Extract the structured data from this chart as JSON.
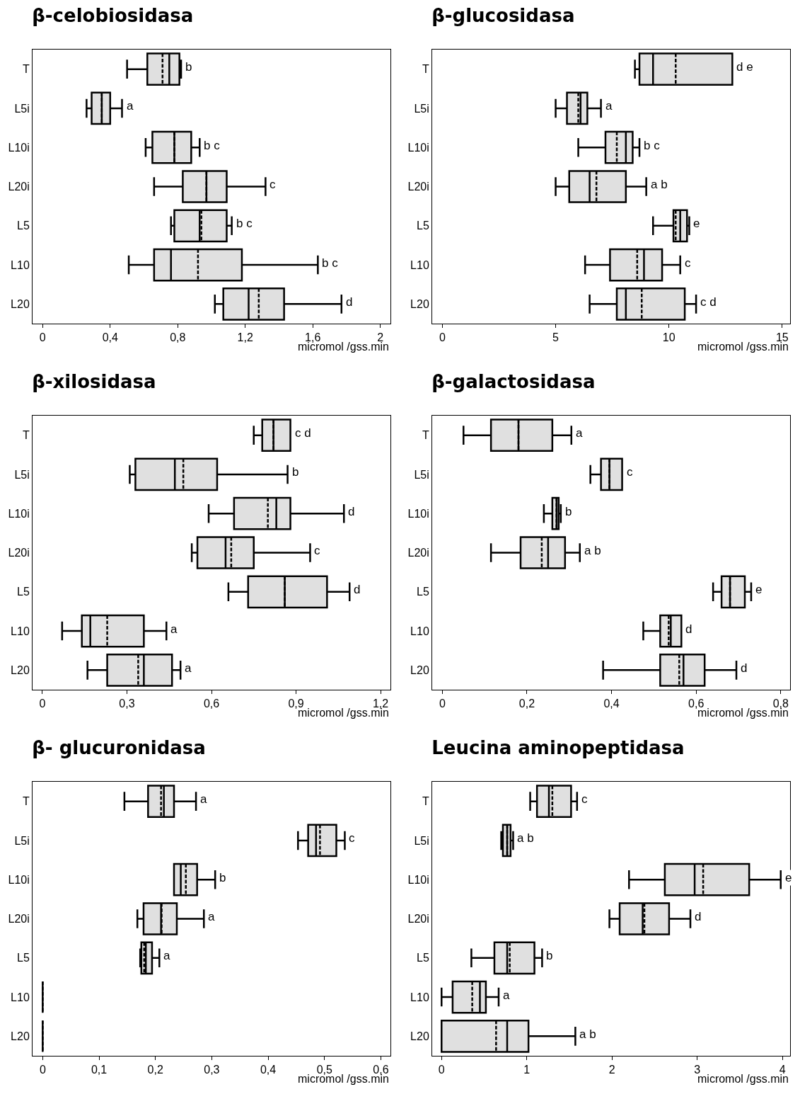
{
  "chart_data": [
    {
      "type": "box",
      "orientation": "horizontal",
      "title": "β-celobiosidasa",
      "xlabel": "micromol /gss.min",
      "categories": [
        "T",
        "L5i",
        "L10i",
        "L20i",
        "L5",
        "L10",
        "L20"
      ],
      "boxes": [
        {
          "low": 0.5,
          "q1": 0.62,
          "median": 0.75,
          "q3": 0.81,
          "high": 0.82,
          "mean": 0.71
        },
        {
          "low": 0.26,
          "q1": 0.29,
          "median": 0.35,
          "q3": 0.4,
          "high": 0.47,
          "mean": 0.35
        },
        {
          "low": 0.61,
          "q1": 0.65,
          "median": 0.78,
          "q3": 0.88,
          "high": 0.93,
          "mean": 0.78
        },
        {
          "low": 0.66,
          "q1": 0.83,
          "median": 0.97,
          "q3": 1.09,
          "high": 1.32,
          "mean": 0.97
        },
        {
          "low": 0.76,
          "q1": 0.78,
          "median": 0.93,
          "q3": 1.09,
          "high": 1.12,
          "mean": 0.94
        },
        {
          "low": 0.51,
          "q1": 0.66,
          "median": 0.76,
          "q3": 1.18,
          "high": 1.63,
          "mean": 0.92
        },
        {
          "low": 1.02,
          "q1": 1.07,
          "median": 1.22,
          "q3": 1.43,
          "high": 1.77,
          "mean": 1.28
        }
      ],
      "xlim": [
        -0.06,
        2.06
      ],
      "xticks": [
        0,
        {
          "value": 0.4,
          "label": "0,4"
        },
        {
          "value": 0.8,
          "label": "0,8"
        },
        {
          "value": 1.2,
          "label": "1,2"
        },
        {
          "value": 1.6,
          "label": "1,6"
        },
        2
      ],
      "annotations": [
        {
          "text": "b",
          "x": 0.82,
          "y": "T"
        },
        {
          "text": "a",
          "x": 0.47,
          "y": "L5i"
        },
        {
          "text": "b c",
          "x": 0.93,
          "y": "L10i"
        },
        {
          "text": "c",
          "x": 1.32,
          "y": "L20i"
        },
        {
          "text": "b c",
          "x": 1.12,
          "y": "L5"
        },
        {
          "text": "b c",
          "x": 1.63,
          "y": "L10"
        },
        {
          "text": "d",
          "x": 1.77,
          "y": "L20"
        }
      ]
    },
    {
      "type": "box",
      "orientation": "horizontal",
      "title": "β-glucosidasa",
      "xlabel": "micromol /gss.min",
      "categories": [
        "T",
        "L5i",
        "L10i",
        "L20i",
        "L5",
        "L10",
        "L20"
      ],
      "boxes": [
        {
          "low": 8.5,
          "q1": 8.7,
          "median": 9.3,
          "q3": 12.8,
          "high": 12.8,
          "mean": 10.3
        },
        {
          "low": 5.0,
          "q1": 5.5,
          "median": 6.1,
          "q3": 6.4,
          "high": 7.0,
          "mean": 6.0
        },
        {
          "low": 6.0,
          "q1": 7.2,
          "median": 8.1,
          "q3": 8.4,
          "high": 8.7,
          "mean": 7.7
        },
        {
          "low": 5.0,
          "q1": 5.6,
          "median": 6.5,
          "q3": 8.1,
          "high": 9.0,
          "mean": 6.8
        },
        {
          "low": 9.3,
          "q1": 10.2,
          "median": 10.5,
          "q3": 10.8,
          "high": 10.9,
          "mean": 10.3
        },
        {
          "low": 6.3,
          "q1": 7.4,
          "median": 8.9,
          "q3": 9.7,
          "high": 10.5,
          "mean": 8.6
        },
        {
          "low": 6.5,
          "q1": 7.7,
          "median": 8.1,
          "q3": 10.7,
          "high": 11.2,
          "mean": 8.8
        }
      ],
      "xlim": [
        -0.45,
        15.35
      ],
      "xticks": [
        0,
        5,
        10,
        15
      ],
      "annotations": [
        {
          "text": "d e",
          "x": 12.8,
          "y": "T"
        },
        {
          "text": "a",
          "x": 7.0,
          "y": "L5i"
        },
        {
          "text": "b c",
          "x": 8.7,
          "y": "L10i"
        },
        {
          "text": "a b",
          "x": 9.0,
          "y": "L20i"
        },
        {
          "text": "e",
          "x": 10.9,
          "y": "L5"
        },
        {
          "text": "c",
          "x": 10.5,
          "y": "L10"
        },
        {
          "text": "c d",
          "x": 11.2,
          "y": "L20"
        }
      ]
    },
    {
      "type": "box",
      "orientation": "horizontal",
      "title": "β-xilosidasa",
      "xlabel": "micromol /gss.min",
      "categories": [
        "T",
        "L5i",
        "L10i",
        "L20i",
        "L5",
        "L10",
        "L20"
      ],
      "boxes": [
        {
          "low": 0.75,
          "q1": 0.78,
          "median": 0.82,
          "q3": 0.88,
          "high": 0.88,
          "mean": 0.82
        },
        {
          "low": 0.31,
          "q1": 0.33,
          "median": 0.47,
          "q3": 0.62,
          "high": 0.87,
          "mean": 0.5
        },
        {
          "low": 0.59,
          "q1": 0.68,
          "median": 0.83,
          "q3": 0.88,
          "high": 1.07,
          "mean": 0.8
        },
        {
          "low": 0.53,
          "q1": 0.55,
          "median": 0.65,
          "q3": 0.75,
          "high": 0.95,
          "mean": 0.67
        },
        {
          "low": 0.66,
          "q1": 0.73,
          "median": 0.86,
          "q3": 1.01,
          "high": 1.09,
          "mean": 0.86
        },
        {
          "low": 0.07,
          "q1": 0.14,
          "median": 0.17,
          "q3": 0.36,
          "high": 0.44,
          "mean": 0.23
        },
        {
          "low": 0.16,
          "q1": 0.23,
          "median": 0.36,
          "q3": 0.46,
          "high": 0.49,
          "mean": 0.34
        }
      ],
      "xlim": [
        -0.035,
        1.235
      ],
      "xticks": [
        0,
        {
          "value": 0.3,
          "label": "0,3"
        },
        {
          "value": 0.6,
          "label": "0,6"
        },
        {
          "value": 0.9,
          "label": "0,9"
        },
        {
          "value": 1.2,
          "label": "1,2"
        }
      ],
      "annotations": [
        {
          "text": "c d",
          "x": 0.88,
          "y": "T"
        },
        {
          "text": "b",
          "x": 0.87,
          "y": "L5i"
        },
        {
          "text": "d",
          "x": 1.07,
          "y": "L10i"
        },
        {
          "text": "c",
          "x": 0.95,
          "y": "L20i"
        },
        {
          "text": "d",
          "x": 1.09,
          "y": "L5"
        },
        {
          "text": "a",
          "x": 0.44,
          "y": "L10"
        },
        {
          "text": "a",
          "x": 0.49,
          "y": "L20"
        }
      ]
    },
    {
      "type": "box",
      "orientation": "horizontal",
      "title": "β-galactosidasa",
      "xlabel": "micromol /gss.min",
      "categories": [
        "T",
        "L5i",
        "L10i",
        "L20i",
        "L5",
        "L10",
        "L20"
      ],
      "boxes": [
        {
          "low": 0.05,
          "q1": 0.115,
          "median": 0.18,
          "q3": 0.26,
          "high": 0.305,
          "mean": 0.18
        },
        {
          "low": 0.35,
          "q1": 0.375,
          "median": 0.395,
          "q3": 0.425,
          "high": 0.425,
          "mean": 0.395
        },
        {
          "low": 0.24,
          "q1": 0.26,
          "median": 0.27,
          "q3": 0.275,
          "high": 0.28,
          "mean": 0.27
        },
        {
          "low": 0.115,
          "q1": 0.185,
          "median": 0.25,
          "q3": 0.29,
          "high": 0.325,
          "mean": 0.235
        },
        {
          "low": 0.64,
          "q1": 0.66,
          "median": 0.68,
          "q3": 0.715,
          "high": 0.73,
          "mean": 0.68
        },
        {
          "low": 0.475,
          "q1": 0.515,
          "median": 0.54,
          "q3": 0.565,
          "high": 0.565,
          "mean": 0.535
        },
        {
          "low": 0.38,
          "q1": 0.515,
          "median": 0.57,
          "q3": 0.62,
          "high": 0.695,
          "mean": 0.56
        }
      ],
      "xlim": [
        -0.024,
        0.822
      ],
      "xticks": [
        0,
        {
          "value": 0.2,
          "label": "0,2"
        },
        {
          "value": 0.4,
          "label": "0,4"
        },
        {
          "value": 0.6,
          "label": "0,6"
        },
        {
          "value": 0.8,
          "label": "0,8"
        }
      ],
      "annotations": [
        {
          "text": "a",
          "x": 0.305,
          "y": "T"
        },
        {
          "text": "c",
          "x": 0.425,
          "y": "L5i"
        },
        {
          "text": "b",
          "x": 0.28,
          "y": "L10i"
        },
        {
          "text": "a b",
          "x": 0.325,
          "y": "L20i"
        },
        {
          "text": "e",
          "x": 0.73,
          "y": "L5"
        },
        {
          "text": "d",
          "x": 0.565,
          "y": "L10"
        },
        {
          "text": "d",
          "x": 0.695,
          "y": "L20"
        }
      ]
    },
    {
      "type": "box",
      "orientation": "horizontal",
      "title": "β- glucuronidasa",
      "xlabel": "micromol /gss.min",
      "categories": [
        "T",
        "L5i",
        "L10i",
        "L20i",
        "L5",
        "L10",
        "L20"
      ],
      "boxes": [
        {
          "low": 0.145,
          "q1": 0.187,
          "median": 0.215,
          "q3": 0.233,
          "high": 0.272,
          "mean": 0.21
        },
        {
          "low": 0.453,
          "q1": 0.471,
          "median": 0.485,
          "q3": 0.521,
          "high": 0.536,
          "mean": 0.492
        },
        {
          "low": 0.233,
          "q1": 0.233,
          "median": 0.245,
          "q3": 0.274,
          "high": 0.306,
          "mean": 0.254
        },
        {
          "low": 0.168,
          "q1": 0.179,
          "median": 0.21,
          "q3": 0.238,
          "high": 0.286,
          "mean": 0.211
        },
        {
          "low": 0.173,
          "q1": 0.175,
          "median": 0.183,
          "q3": 0.194,
          "high": 0.207,
          "mean": 0.18
        },
        {
          "low": 0,
          "q1": 0,
          "median": 0,
          "q3": 0,
          "high": 0
        },
        {
          "low": 0,
          "q1": 0,
          "median": 0,
          "q3": 0,
          "high": 0
        }
      ],
      "xlim": [
        -0.018,
        0.617
      ],
      "xticks": [
        0,
        {
          "value": 0.1,
          "label": "0,1"
        },
        {
          "value": 0.2,
          "label": "0,2"
        },
        {
          "value": 0.3,
          "label": "0,3"
        },
        {
          "value": 0.4,
          "label": "0,4"
        },
        {
          "value": 0.5,
          "label": "0,5"
        },
        {
          "value": 0.6,
          "label": "0,6"
        }
      ],
      "annotations": [
        {
          "text": "a",
          "x": 0.272,
          "y": "T"
        },
        {
          "text": "c",
          "x": 0.536,
          "y": "L5i"
        },
        {
          "text": "b",
          "x": 0.306,
          "y": "L10i"
        },
        {
          "text": "a",
          "x": 0.286,
          "y": "L20i"
        },
        {
          "text": "a",
          "x": 0.207,
          "y": "L5"
        }
      ]
    },
    {
      "type": "box",
      "orientation": "horizontal",
      "title": "Leucina aminopeptidasa",
      "xlabel": "micromol /gss.min",
      "categories": [
        "T",
        "L5i",
        "L10i",
        "L20i",
        "L5",
        "L10",
        "L20"
      ],
      "boxes": [
        {
          "low": 1.04,
          "q1": 1.12,
          "median": 1.26,
          "q3": 1.52,
          "high": 1.59,
          "mean": 1.3
        },
        {
          "low": 0.7,
          "q1": 0.72,
          "median": 0.77,
          "q3": 0.81,
          "high": 0.84,
          "mean": 0.77
        },
        {
          "low": 2.2,
          "q1": 2.62,
          "median": 2.97,
          "q3": 3.61,
          "high": 3.98,
          "mean": 3.07
        },
        {
          "low": 1.97,
          "q1": 2.09,
          "median": 2.36,
          "q3": 2.67,
          "high": 2.92,
          "mean": 2.38
        },
        {
          "low": 0.35,
          "q1": 0.62,
          "median": 0.77,
          "q3": 1.09,
          "high": 1.18,
          "mean": 0.8
        },
        {
          "low": 0,
          "q1": 0.13,
          "median": 0.45,
          "q3": 0.52,
          "high": 0.67,
          "mean": 0.36
        },
        {
          "low": 0,
          "q1": 0,
          "median": 0.77,
          "q3": 1.02,
          "high": 1.57,
          "mean": 0.64
        }
      ],
      "xlim": [
        -0.11,
        4.09
      ],
      "xticks": [
        0,
        1,
        2,
        3,
        4
      ],
      "annotations": [
        {
          "text": "c",
          "x": 1.59,
          "y": "T"
        },
        {
          "text": "a b",
          "x": 0.84,
          "y": "L5i"
        },
        {
          "text": "e",
          "x": 3.98,
          "y": "L10i"
        },
        {
          "text": "d",
          "x": 2.92,
          "y": "L20i"
        },
        {
          "text": "b",
          "x": 1.18,
          "y": "L5"
        },
        {
          "text": "a",
          "x": 0.67,
          "y": "L10"
        },
        {
          "text": "a b",
          "x": 1.57,
          "y": "L20"
        }
      ]
    }
  ]
}
